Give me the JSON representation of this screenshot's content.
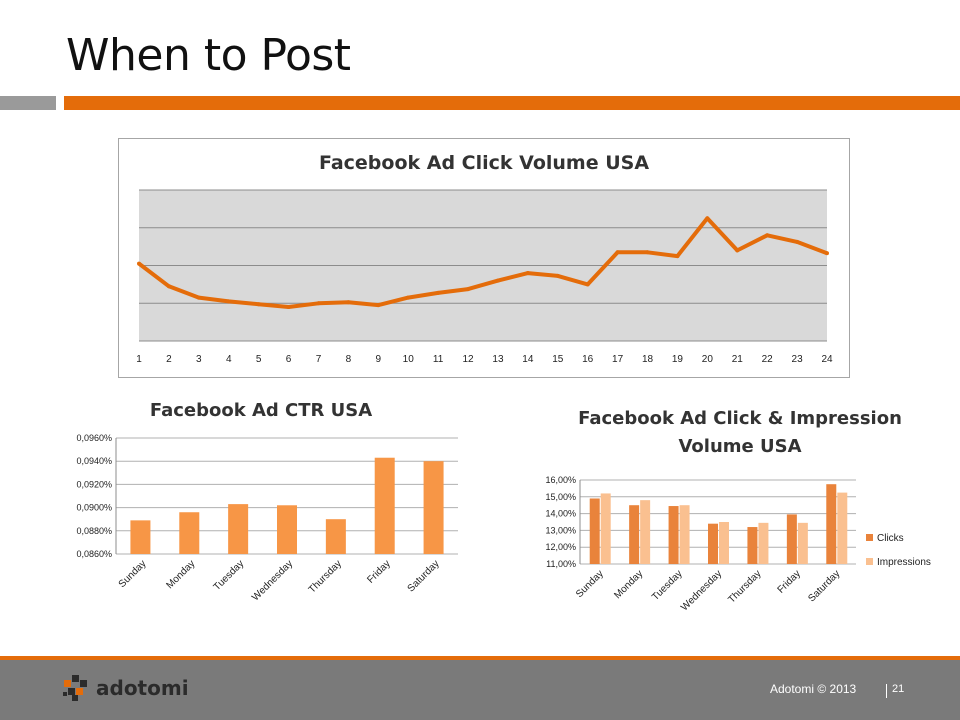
{
  "slide": {
    "title": "When to Post"
  },
  "footer": {
    "brand": "adotomi",
    "copyright": "Adotomi © 2013",
    "page": "21"
  },
  "icons": {
    "logo": "adotomi-cube-logo-icon"
  },
  "colors": {
    "accent": "#e46c0a",
    "line": "#e46c0a",
    "bar": "#f79646",
    "clicks": "#e9833b",
    "impressions": "#fac090",
    "plot_bg": "#d9d9d9",
    "grid": "#8c8c8c",
    "footer": "#7a7a7a"
  },
  "chart_data": [
    {
      "type": "line",
      "title": "Facebook Ad Click Volume USA",
      "x": [
        "1",
        "2",
        "3",
        "4",
        "5",
        "6",
        "7",
        "8",
        "9",
        "10",
        "11",
        "12",
        "13",
        "14",
        "15",
        "16",
        "17",
        "18",
        "19",
        "20",
        "21",
        "22",
        "23",
        "24"
      ],
      "series": [
        {
          "values": [
            0.82,
            0.58,
            0.46,
            0.42,
            0.39,
            0.36,
            0.4,
            0.41,
            0.38,
            0.46,
            0.51,
            0.55,
            0.64,
            0.72,
            0.69,
            0.6,
            0.94,
            0.94,
            0.9,
            1.3,
            0.96,
            1.12,
            1.05,
            0.93
          ]
        }
      ],
      "ylim": [
        0,
        1.6
      ],
      "y_gridlines": 4,
      "ytick_labels_shown": false,
      "grid": true,
      "legend": "none"
    },
    {
      "type": "bar",
      "title": "Facebook Ad CTR USA",
      "categories": [
        "Sunday",
        "Monday",
        "Tuesday",
        "Wednesday",
        "Thursday",
        "Friday",
        "Saturday"
      ],
      "values": [
        0.0889,
        0.0896,
        0.0903,
        0.0902,
        0.089,
        0.0943,
        0.094
      ],
      "ylim": [
        0.086,
        0.096
      ],
      "yticks": [
        "0,0860%",
        "0,0880%",
        "0,0900%",
        "0,0920%",
        "0,0940%",
        "0,0960%"
      ],
      "grid": true,
      "legend": "none"
    },
    {
      "type": "bar",
      "title": "Facebook Ad Click & Impression Volume USA",
      "title_lines": [
        "Facebook Ad Click & Impression",
        "Volume USA"
      ],
      "categories": [
        "Sunday",
        "Monday",
        "Tuesday",
        "Wednesday",
        "Thursday",
        "Friday",
        "Saturday"
      ],
      "series": [
        {
          "name": "Clicks",
          "values": [
            14.9,
            14.5,
            14.45,
            13.4,
            13.2,
            13.95,
            15.75
          ]
        },
        {
          "name": "Impressions",
          "values": [
            15.2,
            14.8,
            14.5,
            13.5,
            13.45,
            13.45,
            15.25
          ]
        }
      ],
      "ylim": [
        11.0,
        16.0
      ],
      "yticks": [
        "11,00%",
        "12,00%",
        "13,00%",
        "14,00%",
        "15,00%",
        "16,00%"
      ],
      "grid": true,
      "legend": "right"
    }
  ]
}
